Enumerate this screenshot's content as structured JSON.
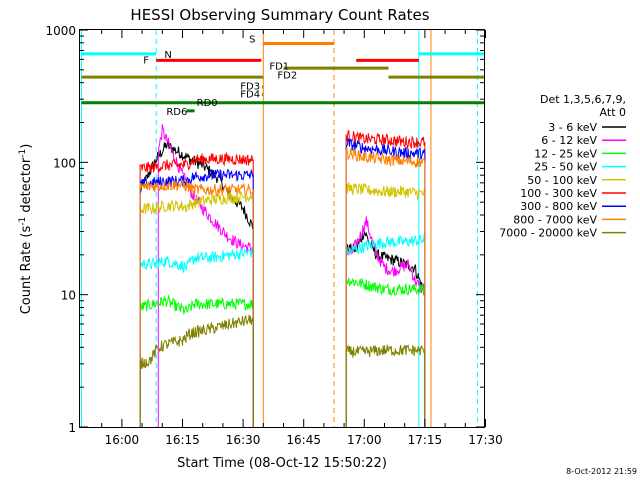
{
  "chart_data": {
    "type": "line",
    "title": "HESSI Observing Summary Count Rates",
    "xlabel": "Start Time (08-Oct-12 15:50:22)",
    "ylabel_main": "Count Rate (s",
    "ylabel_sup1": "-1",
    "ylabel_mid": " detector",
    "ylabel_sup2": "-1",
    "ylabel_end": ")",
    "x_range_minutes": [
      -10.37,
      89.63
    ],
    "y_scale": "log",
    "ylim": [
      1,
      1000
    ],
    "x_ticks": [
      {
        "t": 0,
        "label": "16:00"
      },
      {
        "t": 15,
        "label": "16:15"
      },
      {
        "t": 30,
        "label": "16:30"
      },
      {
        "t": 45,
        "label": "16:45"
      },
      {
        "t": 60,
        "label": "17:00"
      },
      {
        "t": 75,
        "label": "17:15"
      },
      {
        "t": 90,
        "label": "17:30"
      }
    ],
    "y_ticks": [
      {
        "v": 1,
        "label": "1"
      },
      {
        "v": 10,
        "label": "10"
      },
      {
        "v": 100,
        "label": "100"
      },
      {
        "v": 1000,
        "label": "1000"
      }
    ],
    "legend_title_1": "Det 1,3,5,6,7,9,",
    "legend_title_2": "Att 0",
    "legend_placement": "right",
    "series": [
      {
        "name": "3 - 6 keV",
        "color": "#000000",
        "segments": [
          {
            "t": [
              4.5,
              6.5,
              8.5,
              11,
              14,
              17,
              20,
              24,
              27,
              30,
              32.5
            ],
            "y": [
              60,
              80,
              105,
              135,
              120,
              105,
              95,
              75,
              55,
              45,
              32
            ]
          },
          {
            "t": [
              55.5,
              58,
              60,
              61.5,
              63,
              65,
              68,
              70,
              72.5,
              75
            ],
            "y": [
              22,
              22,
              30,
              24,
              20,
              19,
              18,
              17,
              16,
              10
            ]
          }
        ]
      },
      {
        "name": "6 - 12 keV",
        "color": "#ff00ff",
        "segments": [
          {
            "t": [
              9,
              10,
              11,
              13,
              15,
              17,
              20,
              23,
              26,
              29,
              32.5
            ],
            "y": [
              120,
              175,
              150,
              110,
              80,
              60,
              45,
              35,
              28,
              24,
              22
            ]
          },
          {
            "t": [
              55.5,
              57,
              59,
              60.5,
              62,
              63.5,
              65,
              67,
              69,
              71,
              72.5,
              74,
              75
            ],
            "y": [
              20,
              21,
              28,
              36,
              25,
              19,
              16,
              15,
              16,
              17,
              13,
              11,
              12
            ]
          }
        ]
      },
      {
        "name": "12 - 25 keV",
        "color": "#00ff00",
        "segments": [
          {
            "t": [
              4.5,
              8,
              11,
              14,
              16,
              18,
              21,
              24,
              28,
              32.5
            ],
            "y": [
              8,
              8.5,
              9,
              8,
              7.5,
              8.5,
              8.5,
              8.5,
              8.5,
              8.5
            ]
          },
          {
            "t": [
              55.5,
              60,
              65,
              70,
              75
            ],
            "y": [
              13,
              12,
              11,
              11,
              11
            ]
          }
        ]
      },
      {
        "name": "25 - 50 keV",
        "color": "#00ffff",
        "segments": [
          {
            "t": [
              4.5,
              8,
              11,
              14,
              16,
              18,
              22,
              27,
              32.5
            ],
            "y": [
              17,
              17,
              18,
              17,
              16,
              19,
              19,
              20,
              21
            ]
          },
          {
            "t": [
              55.5,
              60,
              65,
              70,
              75
            ],
            "y": [
              21,
              23,
              25,
              25,
              26
            ]
          }
        ]
      },
      {
        "name": "50 - 100 keV",
        "color": "#d4c400",
        "segments": [
          {
            "t": [
              4.5,
              8,
              11,
              14,
              16,
              18,
              22,
              27,
              32.5
            ],
            "y": [
              44,
              45,
              47,
              47,
              46,
              50,
              52,
              54,
              56
            ]
          },
          {
            "t": [
              55.5,
              60,
              65,
              70,
              75
            ],
            "y": [
              64,
              62,
              60,
              60,
              58
            ]
          }
        ]
      },
      {
        "name": "100 - 300 keV",
        "color": "#ff0000",
        "segments": [
          {
            "t": [
              4.5,
              8,
              11,
              14,
              16,
              18,
              22,
              27,
              32.5
            ],
            "y": [
              90,
              92,
              95,
              95,
              96,
              105,
              106,
              106,
              104
            ]
          },
          {
            "t": [
              55.5,
              60,
              65,
              70,
              75
            ],
            "y": [
              160,
              150,
              148,
              143,
              142
            ]
          }
        ]
      },
      {
        "name": "300 - 800 keV",
        "color": "#0000ff",
        "segments": [
          {
            "t": [
              4.5,
              8,
              11,
              14,
              16,
              18,
              22,
              27,
              32.5
            ],
            "y": [
              68,
              70,
              72,
              72,
              73,
              78,
              80,
              80,
              80
            ]
          },
          {
            "t": [
              55.5,
              60,
              65,
              70,
              75
            ],
            "y": [
              140,
              128,
              123,
              118,
              116
            ]
          }
        ]
      },
      {
        "name": "800 - 7000 keV",
        "color": "#ff8000",
        "segments": [
          {
            "t": [
              4.5,
              8,
              11,
              14,
              16,
              18,
              22,
              27,
              32.5
            ],
            "y": [
              65,
              66,
              67,
              68,
              66,
              62,
              62,
              62,
              62
            ]
          },
          {
            "t": [
              55.5,
              60,
              65,
              70,
              75
            ],
            "y": [
              118,
              110,
              105,
              102,
              100
            ]
          }
        ]
      },
      {
        "name": "7000 - 20000 keV",
        "color": "#808000",
        "segments": [
          {
            "t": [
              4.5,
              7,
              9,
              12,
              15,
              16.5,
              18,
              22,
              27,
              32.5
            ],
            "y": [
              3,
              3.2,
              4,
              4.3,
              4.5,
              5,
              5.2,
              5.5,
              6,
              6.5
            ]
          },
          {
            "t": [
              55.5,
              60,
              65,
              70,
              75
            ],
            "y": [
              3.7,
              3.7,
              3.8,
              3.8,
              3.8
            ]
          }
        ]
      }
    ],
    "vertical_markers": [
      {
        "t": -10,
        "color": "#00ffff",
        "style": "solid"
      },
      {
        "t": 8.5,
        "color": "#00ffff",
        "style": "dashed"
      },
      {
        "t": 35,
        "color": "#ff8000",
        "style": "solid"
      },
      {
        "t": 52.5,
        "color": "#ff8000",
        "style": "dashed"
      },
      {
        "t": 73.5,
        "color": "#00ffff",
        "style": "solid"
      },
      {
        "t": 76.5,
        "color": "#ff8000",
        "style": "solid"
      },
      {
        "t": 88,
        "color": "#00ffff",
        "style": "dashed"
      }
    ],
    "flag_bars": [
      {
        "label": "N",
        "color": "#00ffff",
        "y": 660,
        "segments": [
          [
            -10,
            8.5
          ],
          [
            73.5,
            89.63
          ]
        ]
      },
      {
        "label": "S",
        "color": "#ff8000",
        "y": 790,
        "segments": [
          [
            35,
            52.5
          ]
        ]
      },
      {
        "label": "F",
        "color": "#ff0000",
        "y": 590,
        "segments": [
          [
            8.5,
            34.5
          ],
          [
            58,
            73.5
          ]
        ]
      },
      {
        "label": "FD1",
        "color": "#808000",
        "y": 515,
        "segments": [
          [
            40,
            66
          ]
        ]
      },
      {
        "label": "FD2",
        "color": "#808000",
        "y": 440,
        "segments": [
          [
            -10,
            35
          ],
          [
            66,
            89.63
          ]
        ]
      },
      {
        "label": "FD3",
        "color": "#808000",
        "y": 370,
        "segments": [
          [
            34.7,
            35
          ]
        ]
      },
      {
        "label": "FD4",
        "color": "#808000",
        "y": 325,
        "segments": [
          [
            34.7,
            35
          ]
        ]
      },
      {
        "label": "RD0",
        "color": "#008000",
        "y": 282,
        "segments": [
          [
            -10,
            89.63
          ]
        ]
      },
      {
        "label": "RD6",
        "color": "#008000",
        "y": 245,
        "segments": [
          [
            16,
            18
          ]
        ]
      }
    ],
    "flag_label_positions": {
      "N": [
        10.5,
        660
      ],
      "S": [
        31.5,
        860
      ],
      "F": [
        5.3,
        600
      ],
      "FD1": [
        36.5,
        540
      ],
      "FD2": [
        38.5,
        460
      ],
      "FD3": [
        29.3,
        380
      ],
      "FD4": [
        29.3,
        330
      ],
      "RD0": [
        18.5,
        285
      ],
      "RD6": [
        11,
        245
      ]
    }
  },
  "footer_timestamp": "8-Oct-2012 21:59"
}
